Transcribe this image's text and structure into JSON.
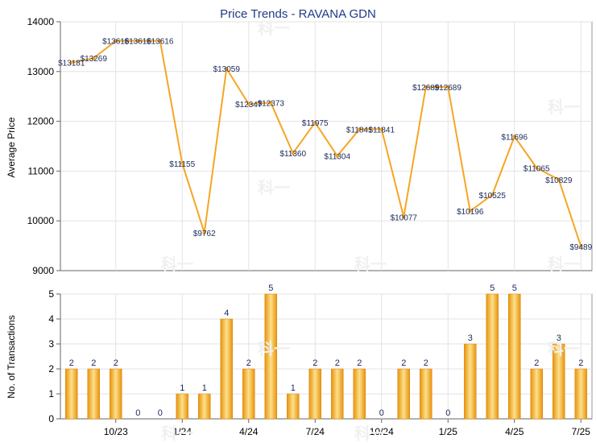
{
  "chart_data": [
    {
      "type": "line",
      "title": "Price Trends - RAVANA GDN",
      "ylabel": "Average Price",
      "ylim": [
        9000,
        14000
      ],
      "yticks": [
        "9000",
        "10000",
        "11000",
        "12000",
        "13000",
        "14000"
      ],
      "grid": true,
      "line_color": "#f5a623",
      "series": [
        {
          "values": [
            13181,
            13269,
            13616,
            13616,
            13616,
            11155,
            9762,
            13059,
            12347,
            12373,
            11360,
            11975,
            11304,
            11841,
            11841,
            10077,
            12689,
            12689,
            10196,
            10525,
            11696,
            11065,
            10829,
            9489
          ],
          "labels": [
            "$13181",
            "$13269",
            "$13616",
            "$13616",
            "$13616",
            "$11155",
            "$9762",
            "$13059",
            "$12347",
            "$12373",
            "$11360",
            "$11975",
            "$11304",
            "$11841",
            "$11841",
            "$10077",
            "$12689",
            "$12689",
            "$10196",
            "$10525",
            "$11696",
            "$11065",
            "$10829",
            "$9489"
          ]
        }
      ]
    },
    {
      "type": "bar",
      "ylabel": "No. of Transactions",
      "ylim": [
        0,
        5
      ],
      "yticks": [
        "0",
        "1",
        "2",
        "3",
        "4",
        "5"
      ],
      "grid": true,
      "bar_color": "#f5a623",
      "x_tick_labels": [
        "10/23",
        "1/24",
        "4/24",
        "7/24",
        "10/24",
        "1/25",
        "4/25",
        "7/25"
      ],
      "values": [
        2,
        2,
        2,
        0,
        0,
        1,
        1,
        4,
        2,
        5,
        1,
        2,
        2,
        2,
        0,
        2,
        2,
        0,
        3,
        5,
        5,
        2,
        3,
        2
      ],
      "labels": [
        "2",
        "2",
        "2",
        "0",
        "0",
        "1",
        "1",
        "4",
        "2",
        "5",
        "1",
        "2",
        "2",
        "2",
        "0",
        "2",
        "2",
        "0",
        "3",
        "5",
        "5",
        "2",
        "3",
        "2"
      ]
    }
  ]
}
